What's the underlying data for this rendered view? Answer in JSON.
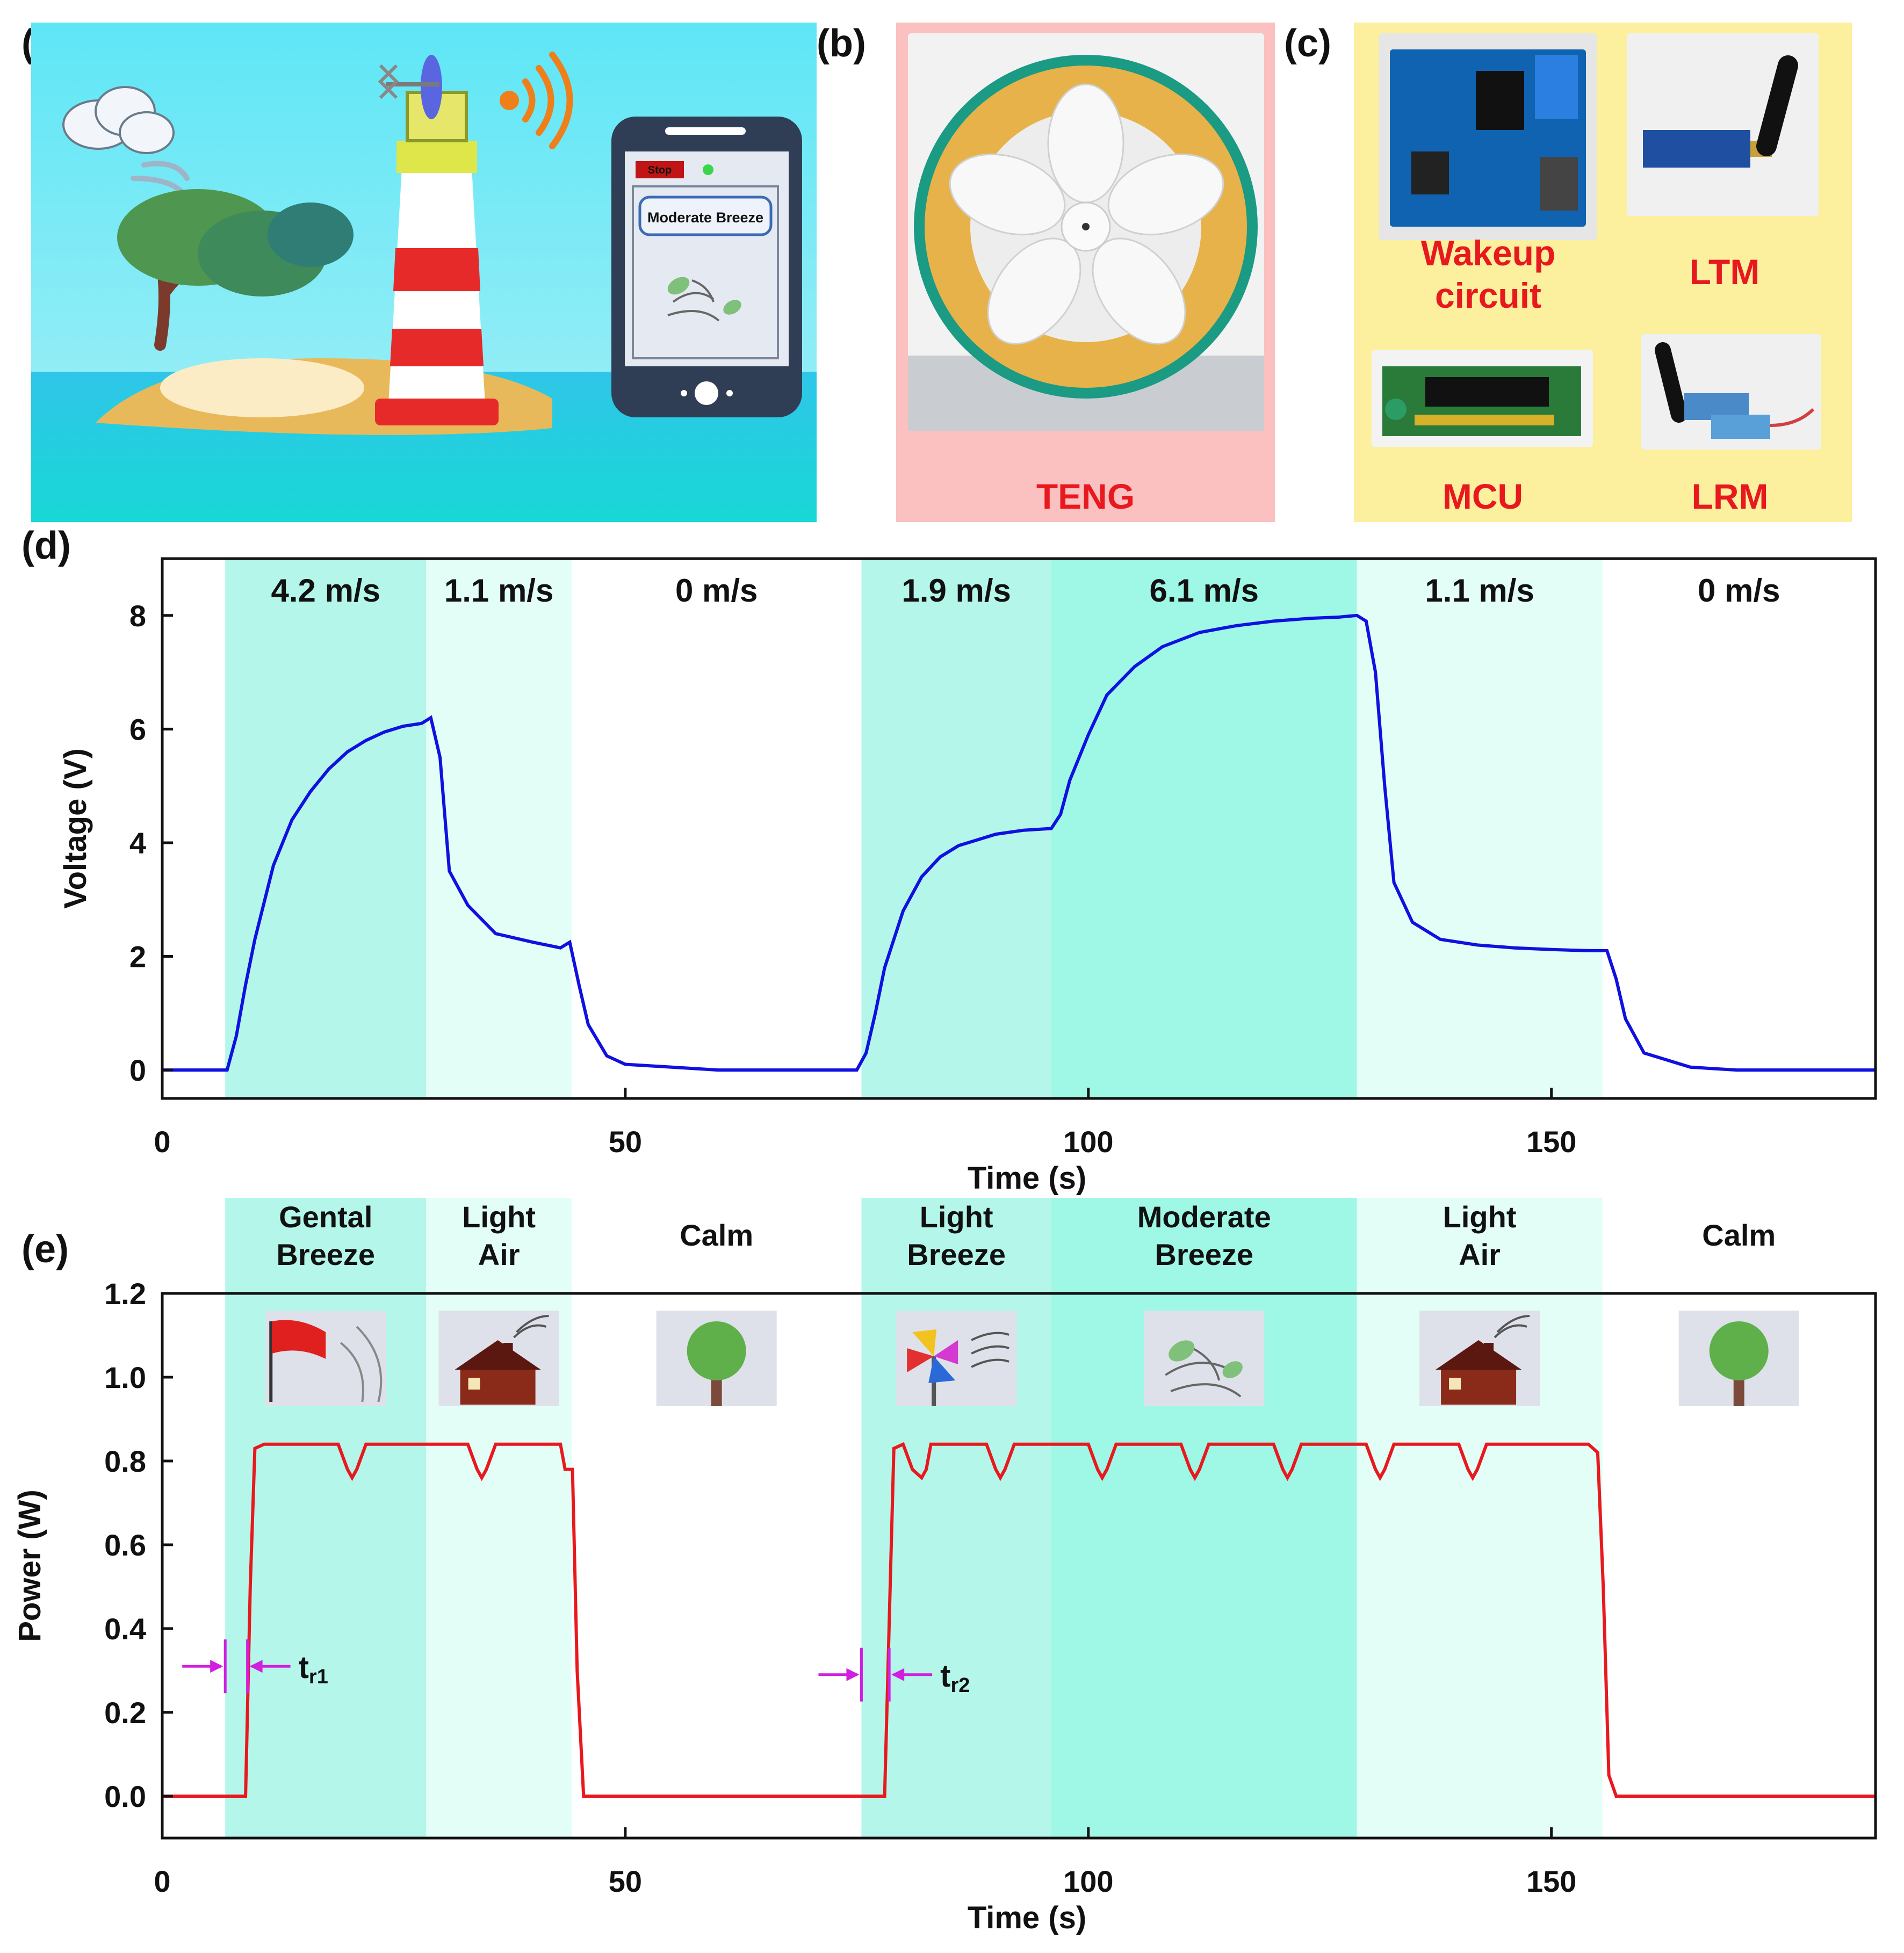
{
  "panels": {
    "a": {
      "label": "(a)",
      "phone_stop": "Stop",
      "phone_status": "Moderate Breeze"
    },
    "b": {
      "label": "(b)",
      "caption": "TENG"
    },
    "c": {
      "label": "(c)",
      "modules": [
        "Wakeup circuit",
        "LTM",
        "MCU",
        "LRM"
      ]
    },
    "d": {
      "label": "(d)"
    },
    "e": {
      "label": "(e)"
    }
  },
  "colors": {
    "voltage_line": "#1010e0",
    "power_line": "#e8191e",
    "shade_dark": "#9ff7e6",
    "shade_mid": "#b4f7ea",
    "shade_light": "#e3fdf7",
    "arrow": "#d21ee0",
    "module_label": "#e8191e"
  },
  "chart_data": [
    {
      "type": "line",
      "panel": "d",
      "xlabel": "Time (s)",
      "ylabel": "Voltage (V)",
      "xlim": [
        0,
        185
      ],
      "ylim": [
        -0.5,
        9.0
      ],
      "xticks": [
        0,
        50,
        100,
        150
      ],
      "yticks": [
        0,
        2,
        4,
        6,
        8
      ],
      "regions": [
        {
          "x0": 6.8,
          "x1": 28.5,
          "label": "4.2  m/s",
          "shade": "mid"
        },
        {
          "x0": 28.5,
          "x1": 44.2,
          "label": "1.1 m/s",
          "shade": "light"
        },
        {
          "x0": 44.2,
          "x1": 75.5,
          "label": "0 m/s",
          "shade": "none"
        },
        {
          "x0": 75.5,
          "x1": 96.0,
          "label": "1.9 m/s",
          "shade": "mid"
        },
        {
          "x0": 96.0,
          "x1": 129.0,
          "label": "6.1 m/s",
          "shade": "dark"
        },
        {
          "x0": 129.0,
          "x1": 155.5,
          "label": "1.1 m/s",
          "shade": "light"
        },
        {
          "x0": 155.5,
          "x1": 185,
          "label": "0 m/s",
          "shade": "none"
        }
      ],
      "series": [
        {
          "x": [
            0,
            4,
            7,
            8,
            9,
            10,
            12,
            14,
            16,
            18,
            20,
            22,
            24,
            26,
            28,
            29,
            30,
            31,
            33,
            36,
            40,
            43,
            44,
            45,
            46,
            48,
            50,
            55,
            60,
            65,
            70,
            75,
            76,
            77,
            78,
            80,
            82,
            84,
            86,
            88,
            90,
            93,
            96,
            97,
            98,
            100,
            102,
            105,
            108,
            112,
            116,
            120,
            124,
            127,
            129,
            130,
            131,
            132,
            133,
            135,
            138,
            142,
            146,
            150,
            154,
            155,
            156,
            157,
            158,
            160,
            165,
            170,
            175,
            180,
            185
          ],
          "y": [
            0.0,
            0.0,
            0.0,
            0.6,
            1.5,
            2.3,
            3.6,
            4.4,
            4.9,
            5.3,
            5.6,
            5.8,
            5.95,
            6.05,
            6.1,
            6.2,
            5.5,
            3.5,
            2.9,
            2.4,
            2.25,
            2.15,
            2.25,
            1.5,
            0.8,
            0.25,
            0.1,
            0.05,
            0.0,
            0.0,
            0.0,
            0.0,
            0.3,
            1.0,
            1.8,
            2.8,
            3.4,
            3.75,
            3.95,
            4.05,
            4.15,
            4.22,
            4.25,
            4.5,
            5.1,
            5.9,
            6.6,
            7.1,
            7.45,
            7.7,
            7.82,
            7.9,
            7.95,
            7.97,
            8.0,
            7.9,
            7.0,
            5.0,
            3.3,
            2.6,
            2.3,
            2.2,
            2.15,
            2.12,
            2.1,
            2.1,
            2.1,
            1.6,
            0.9,
            0.3,
            0.05,
            0.0,
            0.0,
            0.0,
            0.0
          ]
        }
      ]
    },
    {
      "type": "line",
      "panel": "e",
      "xlabel": "Time (s)",
      "ylabel": "Power (W)",
      "xlim": [
        0,
        185
      ],
      "ylim": [
        -0.1,
        1.2
      ],
      "xticks": [
        0,
        50,
        100,
        150
      ],
      "yticks": [
        0.0,
        0.2,
        0.4,
        0.6,
        0.8,
        1.0,
        1.2
      ],
      "regions": [
        {
          "x0": 6.8,
          "x1": 28.5,
          "label": "Gental Breeze",
          "shade": "mid"
        },
        {
          "x0": 28.5,
          "x1": 44.2,
          "label": "Light Air",
          "shade": "light"
        },
        {
          "x0": 44.2,
          "x1": 75.5,
          "label": "Calm",
          "shade": "none"
        },
        {
          "x0": 75.5,
          "x1": 96.0,
          "label": "Light Breeze",
          "shade": "mid"
        },
        {
          "x0": 96.0,
          "x1": 129.0,
          "label": "Moderate Breeze",
          "shade": "dark"
        },
        {
          "x0": 129.0,
          "x1": 155.5,
          "label": "Light Air",
          "shade": "light"
        },
        {
          "x0": 155.5,
          "x1": 185,
          "label": "Calm",
          "shade": "none"
        }
      ],
      "icons": [
        "flag-icon",
        "house-icon",
        "tree-icon",
        "pinwheel-icon",
        "leaves-icon",
        "house-icon",
        "tree-icon"
      ],
      "annotations": [
        {
          "text_main": "t",
          "text_sub": "r1",
          "x0": 6.8,
          "x1": 9.2,
          "y": 0.31
        },
        {
          "text_main": "t",
          "text_sub": "r2",
          "x0": 75.5,
          "x1": 78.5,
          "y": 0.29
        }
      ],
      "series": [
        {
          "x": [
            0,
            6.8,
            9.0,
            9.5,
            10.0,
            11.0,
            19.0,
            20.0,
            20.5,
            21.0,
            22.0,
            33.0,
            34.0,
            34.5,
            35.0,
            36.0,
            43.0,
            43.5,
            44.3,
            44.8,
            45.5,
            75.5,
            78.0,
            78.6,
            79.0,
            80.0,
            81.0,
            82.0,
            82.5,
            83.0,
            89.0,
            90.0,
            90.5,
            91.0,
            92.0,
            100.0,
            101.0,
            101.5,
            102.0,
            103.0,
            110.0,
            111.0,
            111.5,
            112.0,
            113.0,
            120.0,
            121.0,
            121.5,
            122.0,
            123.0,
            130.0,
            131.0,
            131.5,
            132.0,
            133.0,
            140.0,
            141.0,
            141.5,
            142.0,
            143.0,
            154.0,
            155.0,
            155.6,
            156.2,
            157.0,
            185
          ],
          "y": [
            0.0,
            0.0,
            0.0,
            0.5,
            0.83,
            0.84,
            0.84,
            0.78,
            0.76,
            0.78,
            0.84,
            0.84,
            0.78,
            0.76,
            0.78,
            0.84,
            0.84,
            0.78,
            0.78,
            0.3,
            0.0,
            0.0,
            0.0,
            0.5,
            0.83,
            0.84,
            0.78,
            0.76,
            0.78,
            0.84,
            0.84,
            0.78,
            0.76,
            0.78,
            0.84,
            0.84,
            0.78,
            0.76,
            0.78,
            0.84,
            0.84,
            0.78,
            0.76,
            0.78,
            0.84,
            0.84,
            0.78,
            0.76,
            0.78,
            0.84,
            0.84,
            0.78,
            0.76,
            0.78,
            0.84,
            0.84,
            0.78,
            0.76,
            0.78,
            0.84,
            0.84,
            0.82,
            0.5,
            0.05,
            0.0,
            0.0
          ]
        }
      ]
    }
  ]
}
